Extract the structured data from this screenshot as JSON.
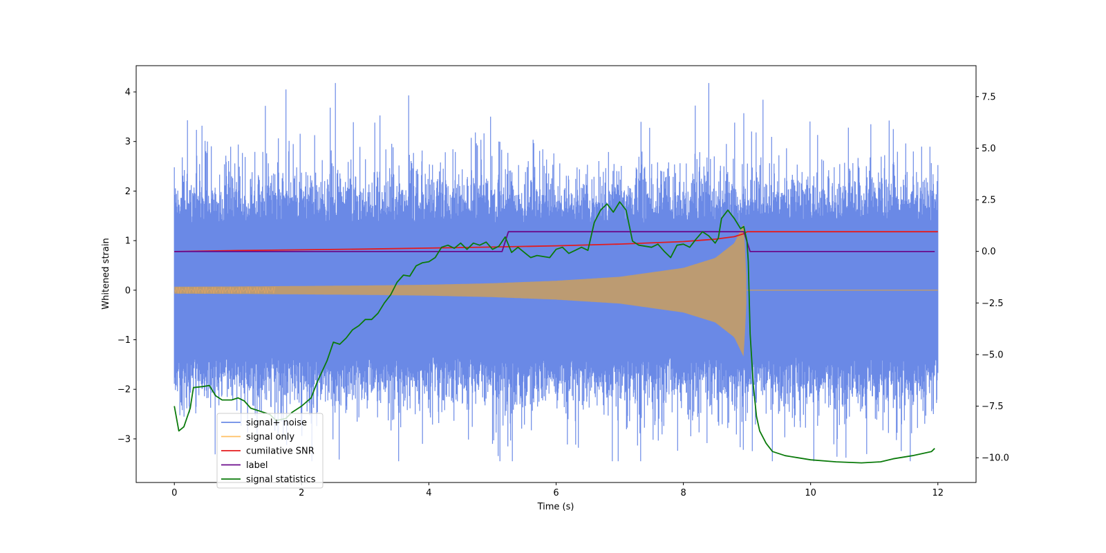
{
  "chart_data": {
    "type": "line",
    "title": "",
    "xlabel": "Time (s)",
    "ylabel": "Whitened strain",
    "y2label": "",
    "xlim": [
      -0.6,
      12.6
    ],
    "ylim": [
      -3.88,
      4.53
    ],
    "y2lim": [
      -11.2,
      9.0
    ],
    "x_ticks": [
      0,
      2,
      4,
      6,
      8,
      10,
      12
    ],
    "x_tick_labels": [
      "0",
      "2",
      "4",
      "6",
      "8",
      "10",
      "12"
    ],
    "y_ticks": [
      -3,
      -2,
      -1,
      0,
      1,
      2,
      3,
      4
    ],
    "y_tick_labels": [
      "−3",
      "−2",
      "−1",
      "0",
      "1",
      "2",
      "3",
      "4"
    ],
    "y2_ticks": [
      -10,
      -7.5,
      -5,
      -2.5,
      0,
      2.5,
      5,
      7.5
    ],
    "y2_tick_labels": [
      "−10.0",
      "−7.5",
      "−5.0",
      "−2.5",
      "0.0",
      "2.5",
      "5.0",
      "7.5"
    ],
    "grid": false,
    "legend_position": "lower-left",
    "colors": {
      "signal_noise": "#6a89e6",
      "signal_only": "#ffbf60",
      "overlap": "#bc9b72",
      "cumulative_snr": "#e41a1c",
      "label": "#6a0a8a",
      "signal_statistics": "#0a7a0a"
    },
    "series": [
      {
        "name": "signal+ noise",
        "axis": "left",
        "style": "dense noise band",
        "x_range": [
          0,
          12
        ],
        "band_upper": 1.3,
        "band_lower": -1.3,
        "max_peak": 4.18,
        "min_peak": -3.45
      },
      {
        "name": "signal only",
        "axis": "left",
        "style": "chirp envelope",
        "x_range": [
          0,
          9.0
        ],
        "envelope": [
          [
            0,
            0.07
          ],
          [
            1,
            0.075
          ],
          [
            2,
            0.085
          ],
          [
            3,
            0.095
          ],
          [
            4,
            0.11
          ],
          [
            5,
            0.14
          ],
          [
            6,
            0.19
          ],
          [
            7,
            0.27
          ],
          [
            8,
            0.45
          ],
          [
            8.5,
            0.65
          ],
          [
            8.8,
            0.95
          ],
          [
            8.95,
            1.35
          ],
          [
            9.0,
            0.0
          ]
        ],
        "after_merger_value": 0.0,
        "after_merger_range": [
          9.0,
          12
        ]
      },
      {
        "name": "cumilative SNR",
        "axis": "left",
        "points": [
          [
            0,
            0.78
          ],
          [
            1,
            0.8
          ],
          [
            2,
            0.815
          ],
          [
            3,
            0.83
          ],
          [
            4,
            0.85
          ],
          [
            5,
            0.87
          ],
          [
            6,
            0.895
          ],
          [
            7,
            0.93
          ],
          [
            8,
            0.98
          ],
          [
            8.5,
            1.03
          ],
          [
            8.8,
            1.08
          ],
          [
            8.95,
            1.14
          ],
          [
            9.0,
            1.18
          ],
          [
            12,
            1.18
          ]
        ]
      },
      {
        "name": "label",
        "axis": "left",
        "points": [
          [
            0,
            0.78
          ],
          [
            5.15,
            0.78
          ],
          [
            5.25,
            1.18
          ],
          [
            8.95,
            1.18
          ],
          [
            9.05,
            0.78
          ],
          [
            11.95,
            0.78
          ]
        ]
      },
      {
        "name": "signal statistics",
        "axis": "right",
        "points": [
          [
            0,
            -7.5
          ],
          [
            0.07,
            -8.7
          ],
          [
            0.15,
            -8.5
          ],
          [
            0.25,
            -7.6
          ],
          [
            0.3,
            -6.6
          ],
          [
            0.45,
            -6.55
          ],
          [
            0.55,
            -6.5
          ],
          [
            0.65,
            -7.0
          ],
          [
            0.75,
            -7.2
          ],
          [
            0.9,
            -7.2
          ],
          [
            1.0,
            -7.1
          ],
          [
            1.1,
            -7.25
          ],
          [
            1.2,
            -7.6
          ],
          [
            1.3,
            -7.7
          ],
          [
            1.5,
            -7.9
          ],
          [
            1.6,
            -8.2
          ],
          [
            1.75,
            -8.1
          ],
          [
            1.85,
            -7.8
          ],
          [
            2.0,
            -7.5
          ],
          [
            2.15,
            -7.1
          ],
          [
            2.25,
            -6.3
          ],
          [
            2.4,
            -5.3
          ],
          [
            2.5,
            -4.4
          ],
          [
            2.6,
            -4.5
          ],
          [
            2.7,
            -4.2
          ],
          [
            2.8,
            -3.8
          ],
          [
            2.9,
            -3.6
          ],
          [
            3.0,
            -3.3
          ],
          [
            3.1,
            -3.3
          ],
          [
            3.2,
            -3.0
          ],
          [
            3.3,
            -2.5
          ],
          [
            3.4,
            -2.1
          ],
          [
            3.5,
            -1.5
          ],
          [
            3.6,
            -1.15
          ],
          [
            3.7,
            -1.2
          ],
          [
            3.8,
            -0.7
          ],
          [
            3.9,
            -0.55
          ],
          [
            4.0,
            -0.5
          ],
          [
            4.1,
            -0.3
          ],
          [
            4.2,
            0.2
          ],
          [
            4.3,
            0.3
          ],
          [
            4.4,
            0.15
          ],
          [
            4.5,
            0.4
          ],
          [
            4.6,
            0.1
          ],
          [
            4.7,
            0.4
          ],
          [
            4.8,
            0.3
          ],
          [
            4.9,
            0.45
          ],
          [
            5.0,
            0.1
          ],
          [
            5.1,
            0.25
          ],
          [
            5.2,
            0.7
          ],
          [
            5.3,
            -0.05
          ],
          [
            5.4,
            0.2
          ],
          [
            5.5,
            -0.05
          ],
          [
            5.6,
            -0.3
          ],
          [
            5.7,
            -0.2
          ],
          [
            5.8,
            -0.25
          ],
          [
            5.9,
            -0.3
          ],
          [
            6.0,
            0.1
          ],
          [
            6.1,
            0.2
          ],
          [
            6.2,
            -0.1
          ],
          [
            6.3,
            0.05
          ],
          [
            6.4,
            0.2
          ],
          [
            6.5,
            0.05
          ],
          [
            6.6,
            1.4
          ],
          [
            6.7,
            2.0
          ],
          [
            6.8,
            2.3
          ],
          [
            6.9,
            1.9
          ],
          [
            7.0,
            2.4
          ],
          [
            7.1,
            2.0
          ],
          [
            7.2,
            0.5
          ],
          [
            7.3,
            0.3
          ],
          [
            7.4,
            0.25
          ],
          [
            7.5,
            0.2
          ],
          [
            7.6,
            0.35
          ],
          [
            7.7,
            0.0
          ],
          [
            7.8,
            -0.3
          ],
          [
            7.9,
            0.3
          ],
          [
            8.0,
            0.35
          ],
          [
            8.1,
            0.2
          ],
          [
            8.2,
            0.6
          ],
          [
            8.3,
            0.95
          ],
          [
            8.4,
            0.75
          ],
          [
            8.5,
            0.4
          ],
          [
            8.55,
            0.65
          ],
          [
            8.6,
            1.6
          ],
          [
            8.7,
            2.0
          ],
          [
            8.8,
            1.6
          ],
          [
            8.9,
            1.1
          ],
          [
            8.95,
            1.2
          ],
          [
            9.0,
            0.5
          ],
          [
            9.02,
            -0.5
          ],
          [
            9.05,
            -4.0
          ],
          [
            9.1,
            -6.5
          ],
          [
            9.15,
            -8.0
          ],
          [
            9.2,
            -8.7
          ],
          [
            9.3,
            -9.3
          ],
          [
            9.4,
            -9.7
          ],
          [
            9.6,
            -9.9
          ],
          [
            9.8,
            -10.0
          ],
          [
            10.0,
            -10.1
          ],
          [
            10.4,
            -10.2
          ],
          [
            10.8,
            -10.25
          ],
          [
            11.1,
            -10.2
          ],
          [
            11.3,
            -10.05
          ],
          [
            11.6,
            -9.9
          ],
          [
            11.9,
            -9.7
          ],
          [
            11.95,
            -9.55
          ]
        ]
      }
    ],
    "annotations": []
  }
}
